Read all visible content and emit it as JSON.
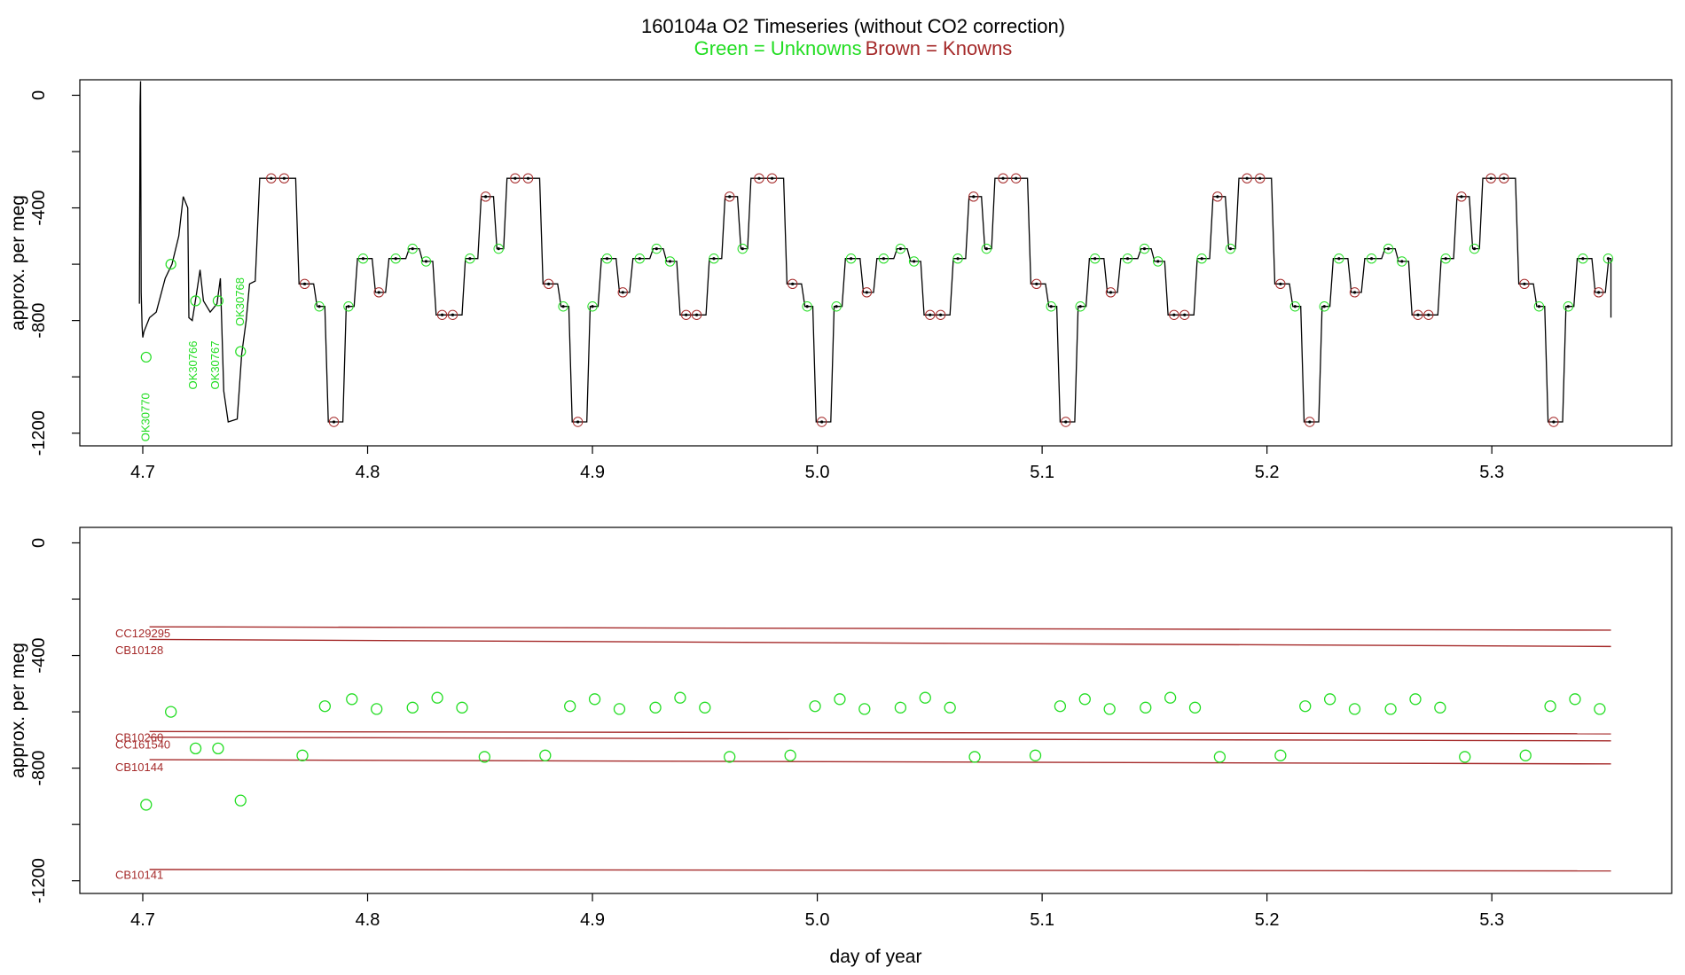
{
  "title": "160104a   O2 Timeseries (without CO2 correction)",
  "subtitle_green": "Green = Unknowns",
  "subtitle_brown": "Brown = Knowns",
  "colors": {
    "green": "#22dd22",
    "brown": "#a52a2a",
    "black": "#000000"
  },
  "chart_data": [
    {
      "type": "line",
      "panel": "top",
      "xlim": [
        4.672,
        5.38
      ],
      "ylim": [
        -1245,
        55
      ],
      "ylabel": "approx. per meg",
      "xlabel": "",
      "x_ticks": [
        4.7,
        4.8,
        4.9,
        5.0,
        5.1,
        5.2,
        5.3
      ],
      "x_tick_labels": [
        "4.7",
        "4.8",
        "4.9",
        "5.0",
        "5.1",
        "5.2",
        "5.3"
      ],
      "y_ticks": [
        0,
        -200,
        -400,
        -600,
        -800,
        -1000,
        -1200
      ],
      "y_tick_labels": [
        "0",
        "-400",
        "-800",
        "-1200"
      ],
      "y_labeled_ticks": [
        0,
        -400,
        -800,
        -1200
      ],
      "startup_trace": [
        [
          4.6985,
          -740
        ],
        [
          4.6988,
          -40
        ],
        [
          4.699,
          50
        ],
        [
          4.6993,
          -700
        ],
        [
          4.6997,
          -820
        ],
        [
          4.7,
          -860
        ],
        [
          4.7005,
          -840
        ],
        [
          4.703,
          -790
        ],
        [
          4.706,
          -770
        ],
        [
          4.71,
          -650
        ],
        [
          4.713,
          -600
        ],
        [
          4.716,
          -500
        ],
        [
          4.718,
          -360
        ],
        [
          4.72,
          -400
        ],
        [
          4.7205,
          -790
        ],
        [
          4.722,
          -800
        ],
        [
          4.724,
          -700
        ],
        [
          4.7255,
          -620
        ],
        [
          4.727,
          -730
        ],
        [
          4.73,
          -770
        ],
        [
          4.733,
          -740
        ],
        [
          4.7345,
          -650
        ],
        [
          4.736,
          -1050
        ],
        [
          4.738,
          -1160
        ],
        [
          4.742,
          -1150
        ],
        [
          4.744,
          -920
        ],
        [
          4.746,
          -800
        ],
        [
          4.7475,
          -670
        ],
        [
          4.75,
          -660
        ],
        [
          4.752,
          -300
        ]
      ],
      "cycle_start": 4.752,
      "cycle_length": 0.1085,
      "cycle_plateaus": [
        [
          0.0,
          0.016,
          -295
        ],
        [
          0.016,
          0.024,
          -670
        ],
        [
          0.024,
          0.029,
          -750
        ],
        [
          0.029,
          0.037,
          -1160
        ],
        [
          0.037,
          0.042,
          -750
        ],
        [
          0.042,
          0.05,
          -580
        ],
        [
          0.05,
          0.056,
          -700
        ],
        [
          0.056,
          0.065,
          -580
        ],
        [
          0.065,
          0.071,
          -545
        ],
        [
          0.071,
          0.077,
          -590
        ],
        [
          0.077,
          0.09,
          -780
        ],
        [
          0.09,
          0.097,
          -580
        ],
        [
          0.097,
          0.104,
          -360
        ],
        [
          0.104,
          0.1085,
          -545
        ]
      ],
      "cycles": 6,
      "end_x": 5.353,
      "end_y": -790,
      "annotations": [
        {
          "text": "OK30770",
          "x": 4.703,
          "y": -1230
        },
        {
          "text": "OK30766",
          "x": 4.724,
          "y": -1045
        },
        {
          "text": "OK30767",
          "x": 4.734,
          "y": -1045
        },
        {
          "text": "OK30768",
          "x": 4.745,
          "y": -820
        }
      ],
      "green_points": [
        [
          4.7015,
          -930
        ],
        [
          4.7125,
          -600
        ],
        [
          4.7235,
          -730
        ],
        [
          4.7335,
          -730
        ],
        [
          4.7435,
          -910
        ]
      ]
    },
    {
      "type": "scatter",
      "panel": "bottom",
      "xlim": [
        4.672,
        5.38
      ],
      "ylim": [
        -1245,
        55
      ],
      "ylabel": "approx. per meg",
      "xlabel": "day of year",
      "x_ticks": [
        4.7,
        4.8,
        4.9,
        5.0,
        5.1,
        5.2,
        5.3
      ],
      "x_tick_labels": [
        "4.7",
        "4.8",
        "4.9",
        "5.0",
        "5.1",
        "5.2",
        "5.3"
      ],
      "y_ticks": [
        0,
        -200,
        -400,
        -600,
        -800,
        -1000,
        -1200
      ],
      "y_tick_labels": [
        "0",
        "-400",
        "-800",
        "-1200"
      ],
      "y_labeled_ticks": [
        0,
        -400,
        -800,
        -1200
      ],
      "reference_lines": [
        {
          "name": "CC129295",
          "y_start": -298,
          "y_end": -310,
          "label_y": -322
        },
        {
          "name": "CB10128",
          "y_start": -343,
          "y_end": -368,
          "label_y": -382
        },
        {
          "name": "CB10260",
          "y_start": -670,
          "y_end": -678,
          "label_y": -693
        },
        {
          "name": "CC161540",
          "y_start": -690,
          "y_end": -703,
          "label_y": -718
        },
        {
          "name": "CB10144",
          "y_start": -770,
          "y_end": -785,
          "label_y": -798
        },
        {
          "name": "CB10141",
          "y_start": -1160,
          "y_end": -1165,
          "label_y": -1180
        }
      ],
      "ref_x_start": 4.703,
      "ref_x_end": 5.353,
      "unknowns": [
        {
          "x": 4.7015,
          "y": -930
        },
        {
          "x": 4.7125,
          "y": -600
        },
        {
          "x": 4.7235,
          "y": -730
        },
        {
          "x": 4.7335,
          "y": -730
        },
        {
          "x": 4.7435,
          "y": -915
        },
        {
          "x": 4.771,
          "y": -755
        },
        {
          "x": 4.781,
          "y": -580
        },
        {
          "x": 4.793,
          "y": -555
        },
        {
          "x": 4.804,
          "y": -590
        },
        {
          "x": 4.82,
          "y": -585
        },
        {
          "x": 4.831,
          "y": -550
        },
        {
          "x": 4.842,
          "y": -585
        },
        {
          "x": 4.852,
          "y": -760
        },
        {
          "x": 4.879,
          "y": -755
        },
        {
          "x": 4.89,
          "y": -580
        },
        {
          "x": 4.901,
          "y": -555
        },
        {
          "x": 4.912,
          "y": -590
        },
        {
          "x": 4.928,
          "y": -585
        },
        {
          "x": 4.939,
          "y": -550
        },
        {
          "x": 4.95,
          "y": -585
        },
        {
          "x": 4.961,
          "y": -760
        },
        {
          "x": 4.988,
          "y": -755
        },
        {
          "x": 4.999,
          "y": -580
        },
        {
          "x": 5.01,
          "y": -555
        },
        {
          "x": 5.021,
          "y": -590
        },
        {
          "x": 5.037,
          "y": -585
        },
        {
          "x": 5.048,
          "y": -550
        },
        {
          "x": 5.059,
          "y": -585
        },
        {
          "x": 5.07,
          "y": -760
        },
        {
          "x": 5.097,
          "y": -755
        },
        {
          "x": 5.108,
          "y": -580
        },
        {
          "x": 5.119,
          "y": -555
        },
        {
          "x": 5.13,
          "y": -590
        },
        {
          "x": 5.146,
          "y": -585
        },
        {
          "x": 5.157,
          "y": -550
        },
        {
          "x": 5.168,
          "y": -585
        },
        {
          "x": 5.179,
          "y": -760
        },
        {
          "x": 5.206,
          "y": -755
        },
        {
          "x": 5.217,
          "y": -580
        },
        {
          "x": 5.228,
          "y": -555
        },
        {
          "x": 5.239,
          "y": -590
        },
        {
          "x": 5.255,
          "y": -590
        },
        {
          "x": 5.266,
          "y": -555
        },
        {
          "x": 5.277,
          "y": -585
        },
        {
          "x": 5.288,
          "y": -760
        },
        {
          "x": 5.315,
          "y": -755
        },
        {
          "x": 5.326,
          "y": -580
        },
        {
          "x": 5.337,
          "y": -555
        },
        {
          "x": 5.348,
          "y": -590
        }
      ]
    }
  ]
}
